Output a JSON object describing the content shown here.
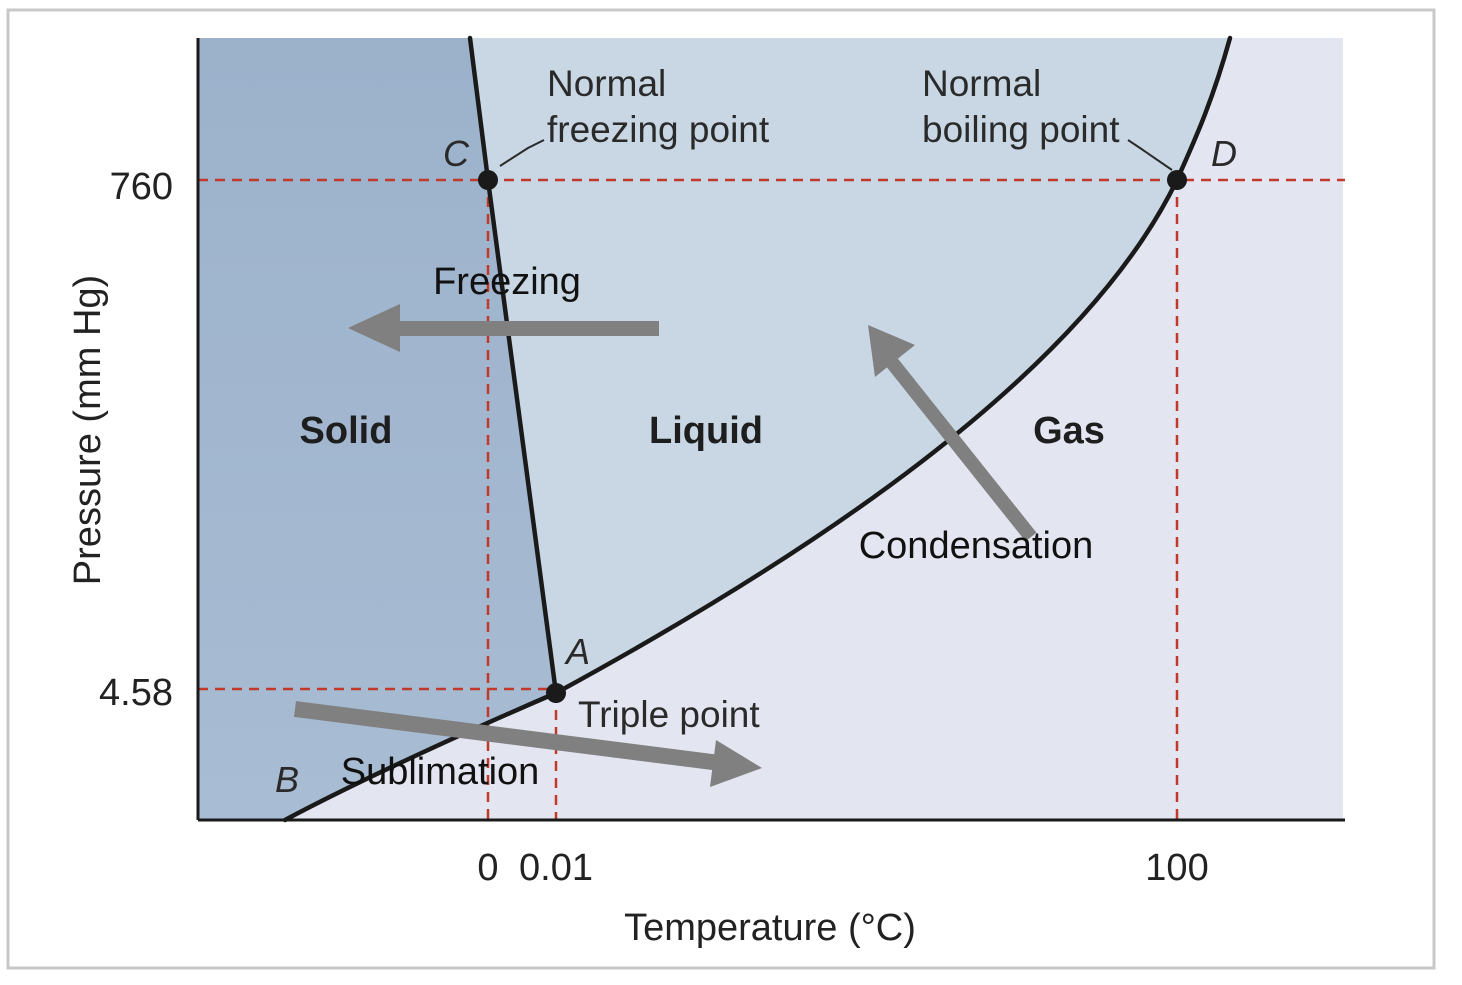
{
  "figure": {
    "axes": {
      "xlabel": "Temperature (°C)",
      "ylabel": "Pressure (mm Hg)",
      "x_ticks": [
        "0",
        "0.01",
        "100"
      ],
      "y_ticks": [
        "760",
        "4.58"
      ]
    },
    "phases": {
      "solid": "Solid",
      "liquid": "Liquid",
      "gas": "Gas"
    },
    "points": {
      "a": "A",
      "b": "B",
      "c": "C",
      "d": "D"
    },
    "annotations": {
      "normal_freezing": [
        "Normal",
        "freezing point"
      ],
      "normal_boiling": [
        "Normal",
        "boiling point"
      ],
      "triple_point": "Triple point"
    },
    "processes": {
      "freezing": "Freezing",
      "condensation": "Condensation",
      "sublimation": "Sublimation"
    },
    "colors": {
      "solid_region": "#9fb4cc",
      "liquid_region": "#c8d7e3",
      "gas_region": "#e3e6f1",
      "phase_boundary": "#1a1a1a",
      "reference_lines": "#c0392b",
      "process_arrows": "#808080"
    }
  }
}
